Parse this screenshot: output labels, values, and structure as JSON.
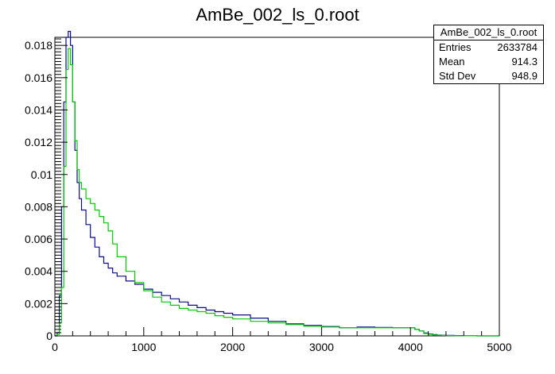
{
  "chart_data": {
    "type": "line",
    "title": "AmBe_002_ls_0.root",
    "xlabel": "",
    "ylabel": "",
    "xlim": [
      0,
      5000
    ],
    "ylim": [
      0,
      0.0185
    ],
    "x_ticks": [
      0,
      1000,
      2000,
      3000,
      4000,
      5000
    ],
    "x_tick_labels": [
      "0",
      "1000",
      "2000",
      "3000",
      "4000",
      "5000"
    ],
    "y_ticks": [
      0,
      0.002,
      0.004,
      0.006,
      0.008,
      0.01,
      0.012,
      0.014,
      0.016,
      0.018
    ],
    "y_tick_labels": [
      "0",
      "0.002",
      "0.004",
      "0.006",
      "0.008",
      "0.01",
      "0.012",
      "0.014",
      "0.016",
      "0.018"
    ],
    "grid": false,
    "series": [
      {
        "color": "#0b0b8f",
        "x": [
          0,
          25,
          50,
          75,
          100,
          125,
          150,
          175,
          200,
          225,
          250,
          275,
          300,
          350,
          400,
          450,
          500,
          550,
          600,
          650,
          700,
          800,
          900,
          1000,
          1100,
          1200,
          1300,
          1400,
          1500,
          1600,
          1700,
          1800,
          1900,
          2000,
          2200,
          2400,
          2600,
          2800,
          3000,
          3200,
          3400,
          3600,
          3800,
          3950,
          4050,
          4100,
          4150,
          4200,
          4250,
          4300,
          4350,
          4400,
          4500,
          4600,
          4700,
          4750,
          4800,
          5000
        ],
        "y": [
          0,
          0.0002,
          0.0025,
          0.008,
          0.0145,
          0.0185,
          0.0195,
          0.018,
          0.0145,
          0.0115,
          0.0095,
          0.0085,
          0.0078,
          0.0069,
          0.0061,
          0.0055,
          0.0049,
          0.0045,
          0.0042,
          0.0039,
          0.0037,
          0.0034,
          0.0032,
          0.0029,
          0.0027,
          0.0025,
          0.0023,
          0.0021,
          0.0019,
          0.00175,
          0.0016,
          0.0015,
          0.0014,
          0.0013,
          0.0011,
          0.0009,
          0.00075,
          0.00065,
          0.00058,
          0.0005,
          0.00055,
          0.00052,
          0.0005,
          0.0005,
          0.0004,
          0.0003,
          0.00018,
          0.00012,
          8e-05,
          5e-05,
          4e-05,
          3e-05,
          2e-05,
          1e-05,
          5e-06,
          0,
          0,
          0
        ]
      },
      {
        "color": "#00cc00",
        "x": [
          0,
          25,
          50,
          75,
          100,
          125,
          150,
          175,
          200,
          225,
          250,
          275,
          300,
          350,
          400,
          450,
          500,
          550,
          600,
          650,
          700,
          800,
          900,
          1000,
          1100,
          1200,
          1300,
          1400,
          1500,
          1600,
          1700,
          1800,
          1900,
          2000,
          2200,
          2400,
          2600,
          2800,
          3000,
          3200,
          3400,
          3600,
          3800,
          3950,
          4050,
          4100,
          4150,
          4200,
          4250,
          4300,
          4350,
          4400,
          4500,
          4600,
          4700,
          4750,
          4800,
          5000
        ],
        "y": [
          0,
          0.0001,
          0.0008,
          0.003,
          0.0105,
          0.0165,
          0.0178,
          0.0168,
          0.0145,
          0.0121,
          0.0103,
          0.0095,
          0.0091,
          0.0085,
          0.0082,
          0.0078,
          0.0074,
          0.007,
          0.0065,
          0.0057,
          0.0049,
          0.004,
          0.0033,
          0.0028,
          0.0024,
          0.0021,
          0.0019,
          0.0017,
          0.0016,
          0.0015,
          0.0014,
          0.00125,
          0.00115,
          0.00105,
          0.0009,
          0.0008,
          0.0007,
          0.0006,
          0.00055,
          0.0005,
          0.0005,
          0.0005,
          0.0005,
          0.0005,
          0.0004,
          0.0003,
          0.00015,
          0.0001,
          6e-05,
          4e-05,
          3e-05,
          2e-05,
          1e-05,
          5e-06,
          3e-06,
          0,
          0,
          0
        ]
      }
    ],
    "stats": {
      "name": "AmBe_002_ls_0.root",
      "entries_label": "Entries",
      "entries": "2633784",
      "mean_label": "Mean",
      "mean": "914.3",
      "stddev_label": "Std Dev",
      "stddev": "948.9"
    }
  }
}
